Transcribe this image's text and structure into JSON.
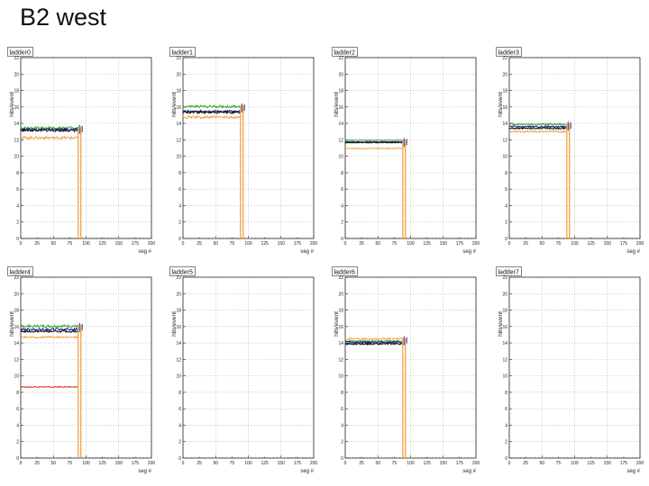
{
  "slide": {
    "title": "B2 west"
  },
  "colors": {
    "green": "#33aa33",
    "blue": "#1a1a8c",
    "black": "#111111",
    "orange": "#f0a040",
    "red": "#e02020",
    "grid": "#bdbdbd"
  },
  "chart_data": [
    {
      "type": "line",
      "title": "ladder0",
      "xlabel": "seg #",
      "ylabel": "hits/event",
      "xlim": [
        0,
        200
      ],
      "ylim": [
        0,
        22
      ],
      "grid": true,
      "drop_x": [
        88,
        92
      ],
      "series": [
        {
          "color": "green",
          "values": [
            13.3,
            13.6
          ]
        },
        {
          "color": "blue",
          "values": [
            13.1,
            13.4
          ]
        },
        {
          "color": "black",
          "values": [
            13.0,
            13.3
          ]
        },
        {
          "color": "orange",
          "values": [
            12.1,
            12.4
          ]
        }
      ]
    },
    {
      "type": "line",
      "title": "ladder1",
      "xlabel": "seg #",
      "ylabel": "hits/event",
      "xlim": [
        0,
        200
      ],
      "ylim": [
        0,
        22
      ],
      "grid": true,
      "drop_x": [
        88,
        92
      ],
      "series": [
        {
          "color": "green",
          "values": [
            15.9,
            16.2
          ]
        },
        {
          "color": "blue",
          "values": [
            15.3,
            15.6
          ]
        },
        {
          "color": "black",
          "values": [
            15.2,
            15.5
          ]
        },
        {
          "color": "orange",
          "values": [
            14.6,
            14.9
          ]
        }
      ]
    },
    {
      "type": "line",
      "title": "ladder2",
      "xlabel": "seg #",
      "ylabel": "hits/event",
      "xlim": [
        0,
        200
      ],
      "ylim": [
        0,
        22
      ],
      "grid": true,
      "drop_x": [
        88,
        92
      ],
      "series": [
        {
          "color": "green",
          "values": [
            11.9,
            12.0
          ]
        },
        {
          "color": "blue",
          "values": [
            11.7,
            11.8
          ]
        },
        {
          "color": "black",
          "values": [
            11.6,
            11.7
          ]
        },
        {
          "color": "orange",
          "values": [
            10.9,
            11.0
          ]
        }
      ]
    },
    {
      "type": "line",
      "title": "ladder3",
      "xlabel": "seg #",
      "ylabel": "hits/event",
      "xlim": [
        0,
        200
      ],
      "ylim": [
        0,
        22
      ],
      "grid": true,
      "drop_x": [
        88,
        92
      ],
      "series": [
        {
          "color": "green",
          "values": [
            13.8,
            14.0
          ]
        },
        {
          "color": "blue",
          "values": [
            13.5,
            13.7
          ]
        },
        {
          "color": "black",
          "values": [
            13.3,
            13.5
          ]
        },
        {
          "color": "orange",
          "values": [
            12.9,
            13.1
          ]
        }
      ]
    },
    {
      "type": "line",
      "title": "ladder4",
      "xlabel": "seg #",
      "ylabel": "hits/event",
      "xlim": [
        0,
        200
      ],
      "ylim": [
        0,
        22
      ],
      "grid": true,
      "drop_x": [
        88,
        92
      ],
      "series": [
        {
          "color": "green",
          "values": [
            15.9,
            16.2
          ]
        },
        {
          "color": "blue",
          "values": [
            15.5,
            15.8
          ]
        },
        {
          "color": "black",
          "values": [
            15.3,
            15.5
          ]
        },
        {
          "color": "orange",
          "values": [
            14.6,
            14.8
          ]
        },
        {
          "color": "red",
          "values": [
            8.6,
            8.7
          ]
        }
      ]
    },
    {
      "type": "line",
      "title": "ladder5",
      "xlabel": "seg #",
      "ylabel": "hits/event",
      "xlim": [
        0,
        200
      ],
      "ylim": [
        0,
        22
      ],
      "grid": true,
      "drop_x": [],
      "series": []
    },
    {
      "type": "line",
      "title": "ladder6",
      "xlabel": "seg #",
      "ylabel": "hits/event",
      "xlim": [
        0,
        200
      ],
      "ylim": [
        0,
        22
      ],
      "grid": true,
      "drop_x": [
        88,
        92
      ],
      "series": [
        {
          "color": "orange",
          "values": [
            14.4,
            14.6
          ]
        },
        {
          "color": "green",
          "values": [
            14.1,
            14.3
          ]
        },
        {
          "color": "blue",
          "values": [
            14.0,
            14.2
          ]
        },
        {
          "color": "black",
          "values": [
            13.8,
            14.0
          ]
        }
      ]
    },
    {
      "type": "line",
      "title": "ladder7",
      "xlabel": "seg #",
      "ylabel": "hits/event",
      "xlim": [
        0,
        200
      ],
      "ylim": [
        0,
        22
      ],
      "grid": true,
      "drop_x": [],
      "series": []
    }
  ]
}
